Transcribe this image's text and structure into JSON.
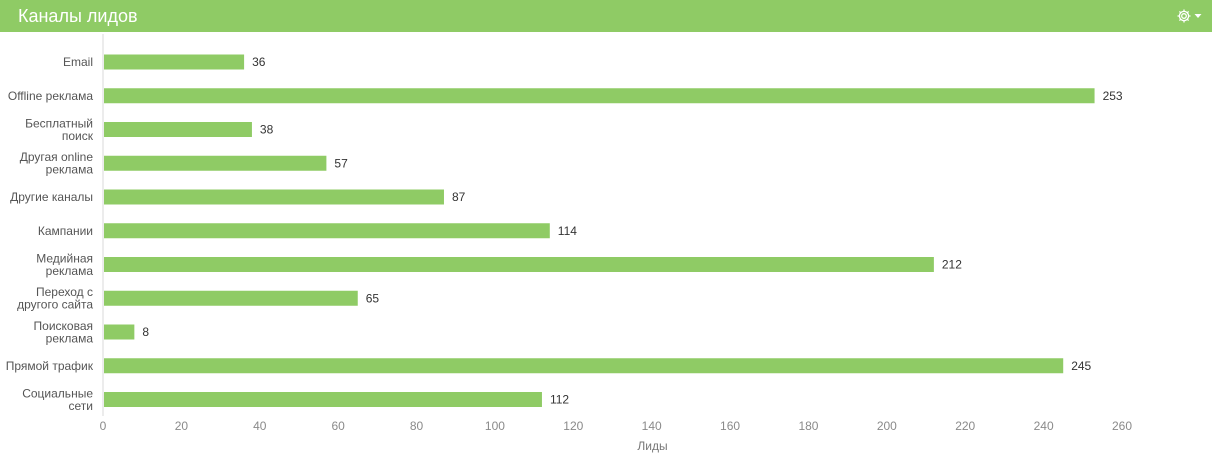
{
  "header": {
    "title": "Каналы лидов",
    "settings_icon": "gear-icon",
    "dropdown_icon": "caret-down-icon",
    "background": "#8fcb65",
    "title_color": "#ffffff"
  },
  "chart_data": {
    "type": "bar",
    "orientation": "horizontal",
    "categories": [
      "Email",
      "Offline реклама",
      "Бесплатный поиск",
      "Другая online реклама",
      "Другие каналы",
      "Кампании",
      "Медийная реклама",
      "Переход с другого сайта",
      "Поисковая реклама",
      "Прямой трафик",
      "Социальные сети"
    ],
    "category_lines": [
      [
        "Email"
      ],
      [
        "Offline реклама"
      ],
      [
        "Бесплатный",
        "поиск"
      ],
      [
        "Другая online",
        "реклама"
      ],
      [
        "Другие каналы"
      ],
      [
        "Кампании"
      ],
      [
        "Медийная",
        "реклама"
      ],
      [
        "Переход с",
        "другого сайта"
      ],
      [
        "Поисковая",
        "реклама"
      ],
      [
        "Прямой трафик"
      ],
      [
        "Социальные",
        "сети"
      ]
    ],
    "series": [
      {
        "values": [
          36,
          253,
          38,
          57,
          87,
          114,
          212,
          65,
          8,
          245,
          112
        ],
        "color": "#8fcb65"
      }
    ],
    "xlabel": "Лиды",
    "ylabel": "",
    "xlim": [
      0,
      260
    ],
    "xticks": [
      0,
      20,
      40,
      60,
      80,
      100,
      120,
      140,
      160,
      180,
      200,
      220,
      240,
      260
    ],
    "grid": false,
    "legend": "none",
    "data_labels": true
  }
}
